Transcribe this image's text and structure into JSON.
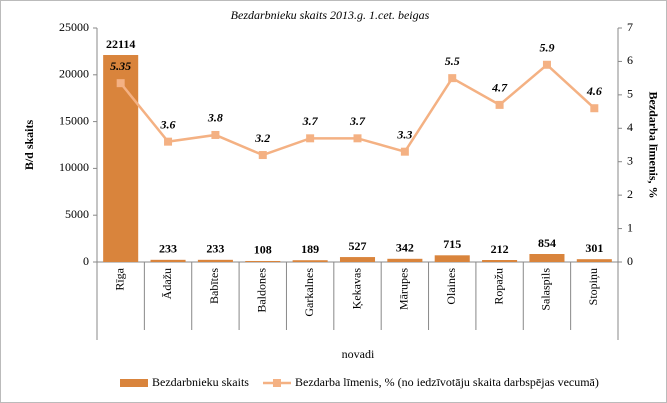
{
  "chart_data": {
    "type": "combo",
    "title": "Bezdarbnieku skaits 2013.g. 1.cet. beigas",
    "x_label": "novadi",
    "y_label": "B/d skaits",
    "y2_label": "Bezdarba līmenis, %",
    "categories": [
      "Rīga",
      "Ādažu",
      "Babītes",
      "Baldones",
      "Garkalnes",
      "Ķekavas",
      "Mārupes",
      "Olaines",
      "Ropažu",
      "Salaspils",
      "Stopiņu"
    ],
    "series": [
      {
        "name": "Bezdarbnieku skaits",
        "type": "bar",
        "color": "#d9843c",
        "values": [
          22114,
          233,
          233,
          108,
          189,
          527,
          342,
          715,
          212,
          854,
          301
        ]
      },
      {
        "name": "Bezdarba līmenis, % (no iedzīvotāju skaita darbspējas vecumā)",
        "type": "line",
        "axis": "y2",
        "color": "#f4b183",
        "values": [
          5.35,
          3.6,
          3.8,
          3.2,
          3.7,
          3.7,
          3.3,
          5.5,
          4.7,
          5.9,
          4.6
        ]
      }
    ],
    "ylim": [
      0,
      25000
    ],
    "yticks": [
      0,
      5000,
      10000,
      15000,
      20000,
      25000
    ],
    "y2lim": [
      0,
      7
    ],
    "y2ticks": [
      0,
      1,
      2,
      3,
      4,
      5,
      6,
      7
    ],
    "grid": false,
    "legend": "bottom"
  }
}
